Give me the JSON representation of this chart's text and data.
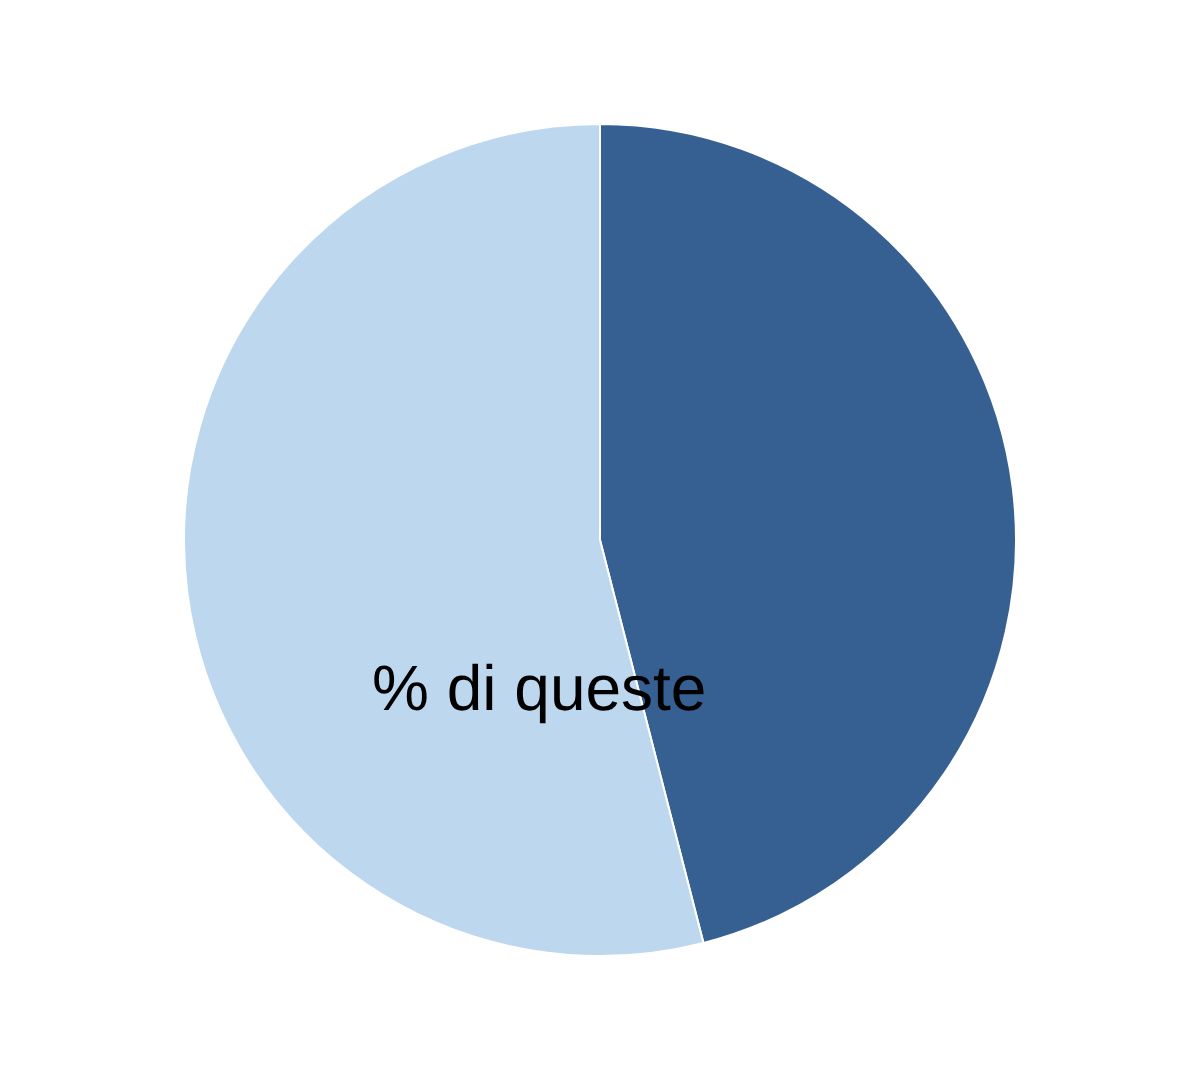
{
  "chart_data": {
    "type": "pie",
    "categories": [
      null,
      null
    ],
    "values": [
      46,
      54
    ],
    "colors": [
      "#366092",
      "#bdd7ee"
    ],
    "legend": false,
    "annotations": [
      "% di queste"
    ]
  }
}
